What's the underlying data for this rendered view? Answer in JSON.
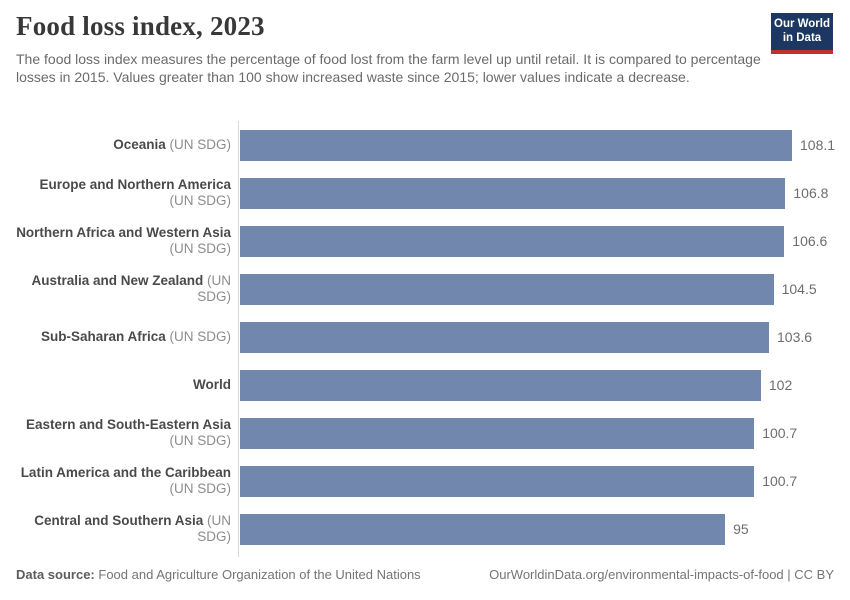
{
  "header": {
    "title": "Food loss index, 2023",
    "subtitle": "The food loss index measures the percentage of food lost from the farm level up until retail. It is compared to percentage losses in 2015. Values greater than 100 show increased waste since 2015; lower values indicate a decrease.",
    "logo": {
      "line1": "Our World",
      "line2": "in Data"
    }
  },
  "colors": {
    "bar": "#7187ae",
    "logo_background": "#1c3761",
    "logo_stripe": "#c4312a",
    "axis_line": "#d9d9d9"
  },
  "chart_data": {
    "type": "bar",
    "orientation": "horizontal",
    "title": "Food loss index, 2023",
    "xlabel": "",
    "ylabel": "",
    "xlim": [
      0,
      110
    ],
    "grid": false,
    "legend": false,
    "value_labels_shown": true,
    "categories": [
      "Oceania (UN SDG)",
      "Europe and Northern America (UN SDG)",
      "Northern Africa and Western Asia (UN SDG)",
      "Australia and New Zealand (UN SDG)",
      "Sub-Saharan Africa (UN SDG)",
      "World",
      "Eastern and South-Eastern Asia (UN SDG)",
      "Latin America and the Caribbean (UN SDG)",
      "Central and Southern Asia (UN SDG)"
    ],
    "values": [
      108.1,
      106.8,
      106.6,
      104.5,
      103.6,
      102,
      100.7,
      100.7,
      95
    ],
    "rows": [
      {
        "name": "Oceania",
        "qualifier": "(UN SDG)",
        "two_line": false,
        "value": 108.1,
        "value_label": "108.1"
      },
      {
        "name": "Europe and Northern America",
        "qualifier": "(UN SDG)",
        "two_line": true,
        "value": 106.8,
        "value_label": "106.8"
      },
      {
        "name": "Northern Africa and Western Asia",
        "qualifier": "(UN SDG)",
        "two_line": true,
        "value": 106.6,
        "value_label": "106.6"
      },
      {
        "name": "Australia and New Zealand",
        "qualifier": "(UN SDG)",
        "two_line": false,
        "value": 104.5,
        "value_label": "104.5"
      },
      {
        "name": "Sub-Saharan Africa",
        "qualifier": "(UN SDG)",
        "two_line": false,
        "value": 103.6,
        "value_label": "103.6"
      },
      {
        "name": "World",
        "qualifier": "",
        "two_line": false,
        "value": 102,
        "value_label": "102"
      },
      {
        "name": "Eastern and South-Eastern Asia",
        "qualifier": "(UN SDG)",
        "two_line": true,
        "value": 100.7,
        "value_label": "100.7"
      },
      {
        "name": "Latin America and the Caribbean",
        "qualifier": "(UN SDG)",
        "two_line": true,
        "value": 100.7,
        "value_label": "100.7"
      },
      {
        "name": "Central and Southern Asia",
        "qualifier": "(UN SDG)",
        "two_line": false,
        "value": 95,
        "value_label": "95"
      }
    ]
  },
  "footer": {
    "source_label": "Data source:",
    "source_value": "Food and Agriculture Organization of the United Nations",
    "credit": "OurWorldinData.org/environmental-impacts-of-food | CC BY"
  }
}
